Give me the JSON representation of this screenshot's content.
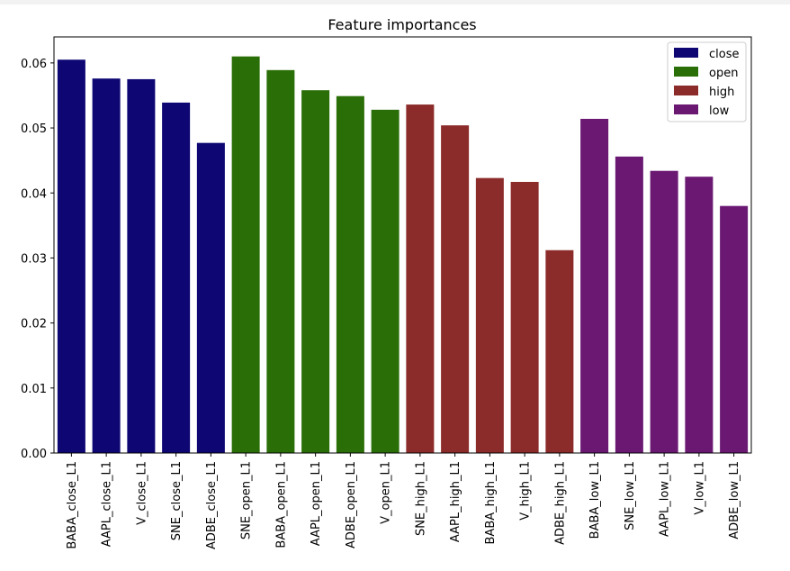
{
  "chart_data": {
    "type": "bar",
    "title": "Feature importances",
    "xlabel": "",
    "ylabel": "",
    "ylim": [
      0,
      0.064
    ],
    "yticks": [
      "0.00",
      "0.01",
      "0.02",
      "0.03",
      "0.04",
      "0.05",
      "0.06"
    ],
    "legend_position": "top-right",
    "grid": false,
    "categories": [
      "BABA_close_L1",
      "AAPL_close_L1",
      "V_close_L1",
      "SNE_close_L1",
      "ADBE_close_L1",
      "SNE_open_L1",
      "BABA_open_L1",
      "AAPL_open_L1",
      "ADBE_open_L1",
      "V_open_L1",
      "SNE_high_L1",
      "AAPL_high_L1",
      "BABA_high_L1",
      "V_high_L1",
      "ADBE_high_L1",
      "BABA_low_L1",
      "SNE_low_L1",
      "AAPL_low_L1",
      "V_low_L1",
      "ADBE_low_L1"
    ],
    "values": [
      0.0605,
      0.0576,
      0.0575,
      0.0539,
      0.0477,
      0.061,
      0.0589,
      0.0558,
      0.0549,
      0.0528,
      0.0536,
      0.0504,
      0.0423,
      0.0417,
      0.0312,
      0.0514,
      0.0456,
      0.0434,
      0.0425,
      0.038
    ],
    "groups": [
      0,
      0,
      0,
      0,
      0,
      1,
      1,
      1,
      1,
      1,
      2,
      2,
      2,
      2,
      2,
      3,
      3,
      3,
      3,
      3
    ],
    "series": [
      {
        "name": "close",
        "color": "#0d0673"
      },
      {
        "name": "open",
        "color": "#2a6e07"
      },
      {
        "name": "high",
        "color": "#8c2c2a"
      },
      {
        "name": "low",
        "color": "#6a1872"
      }
    ]
  }
}
